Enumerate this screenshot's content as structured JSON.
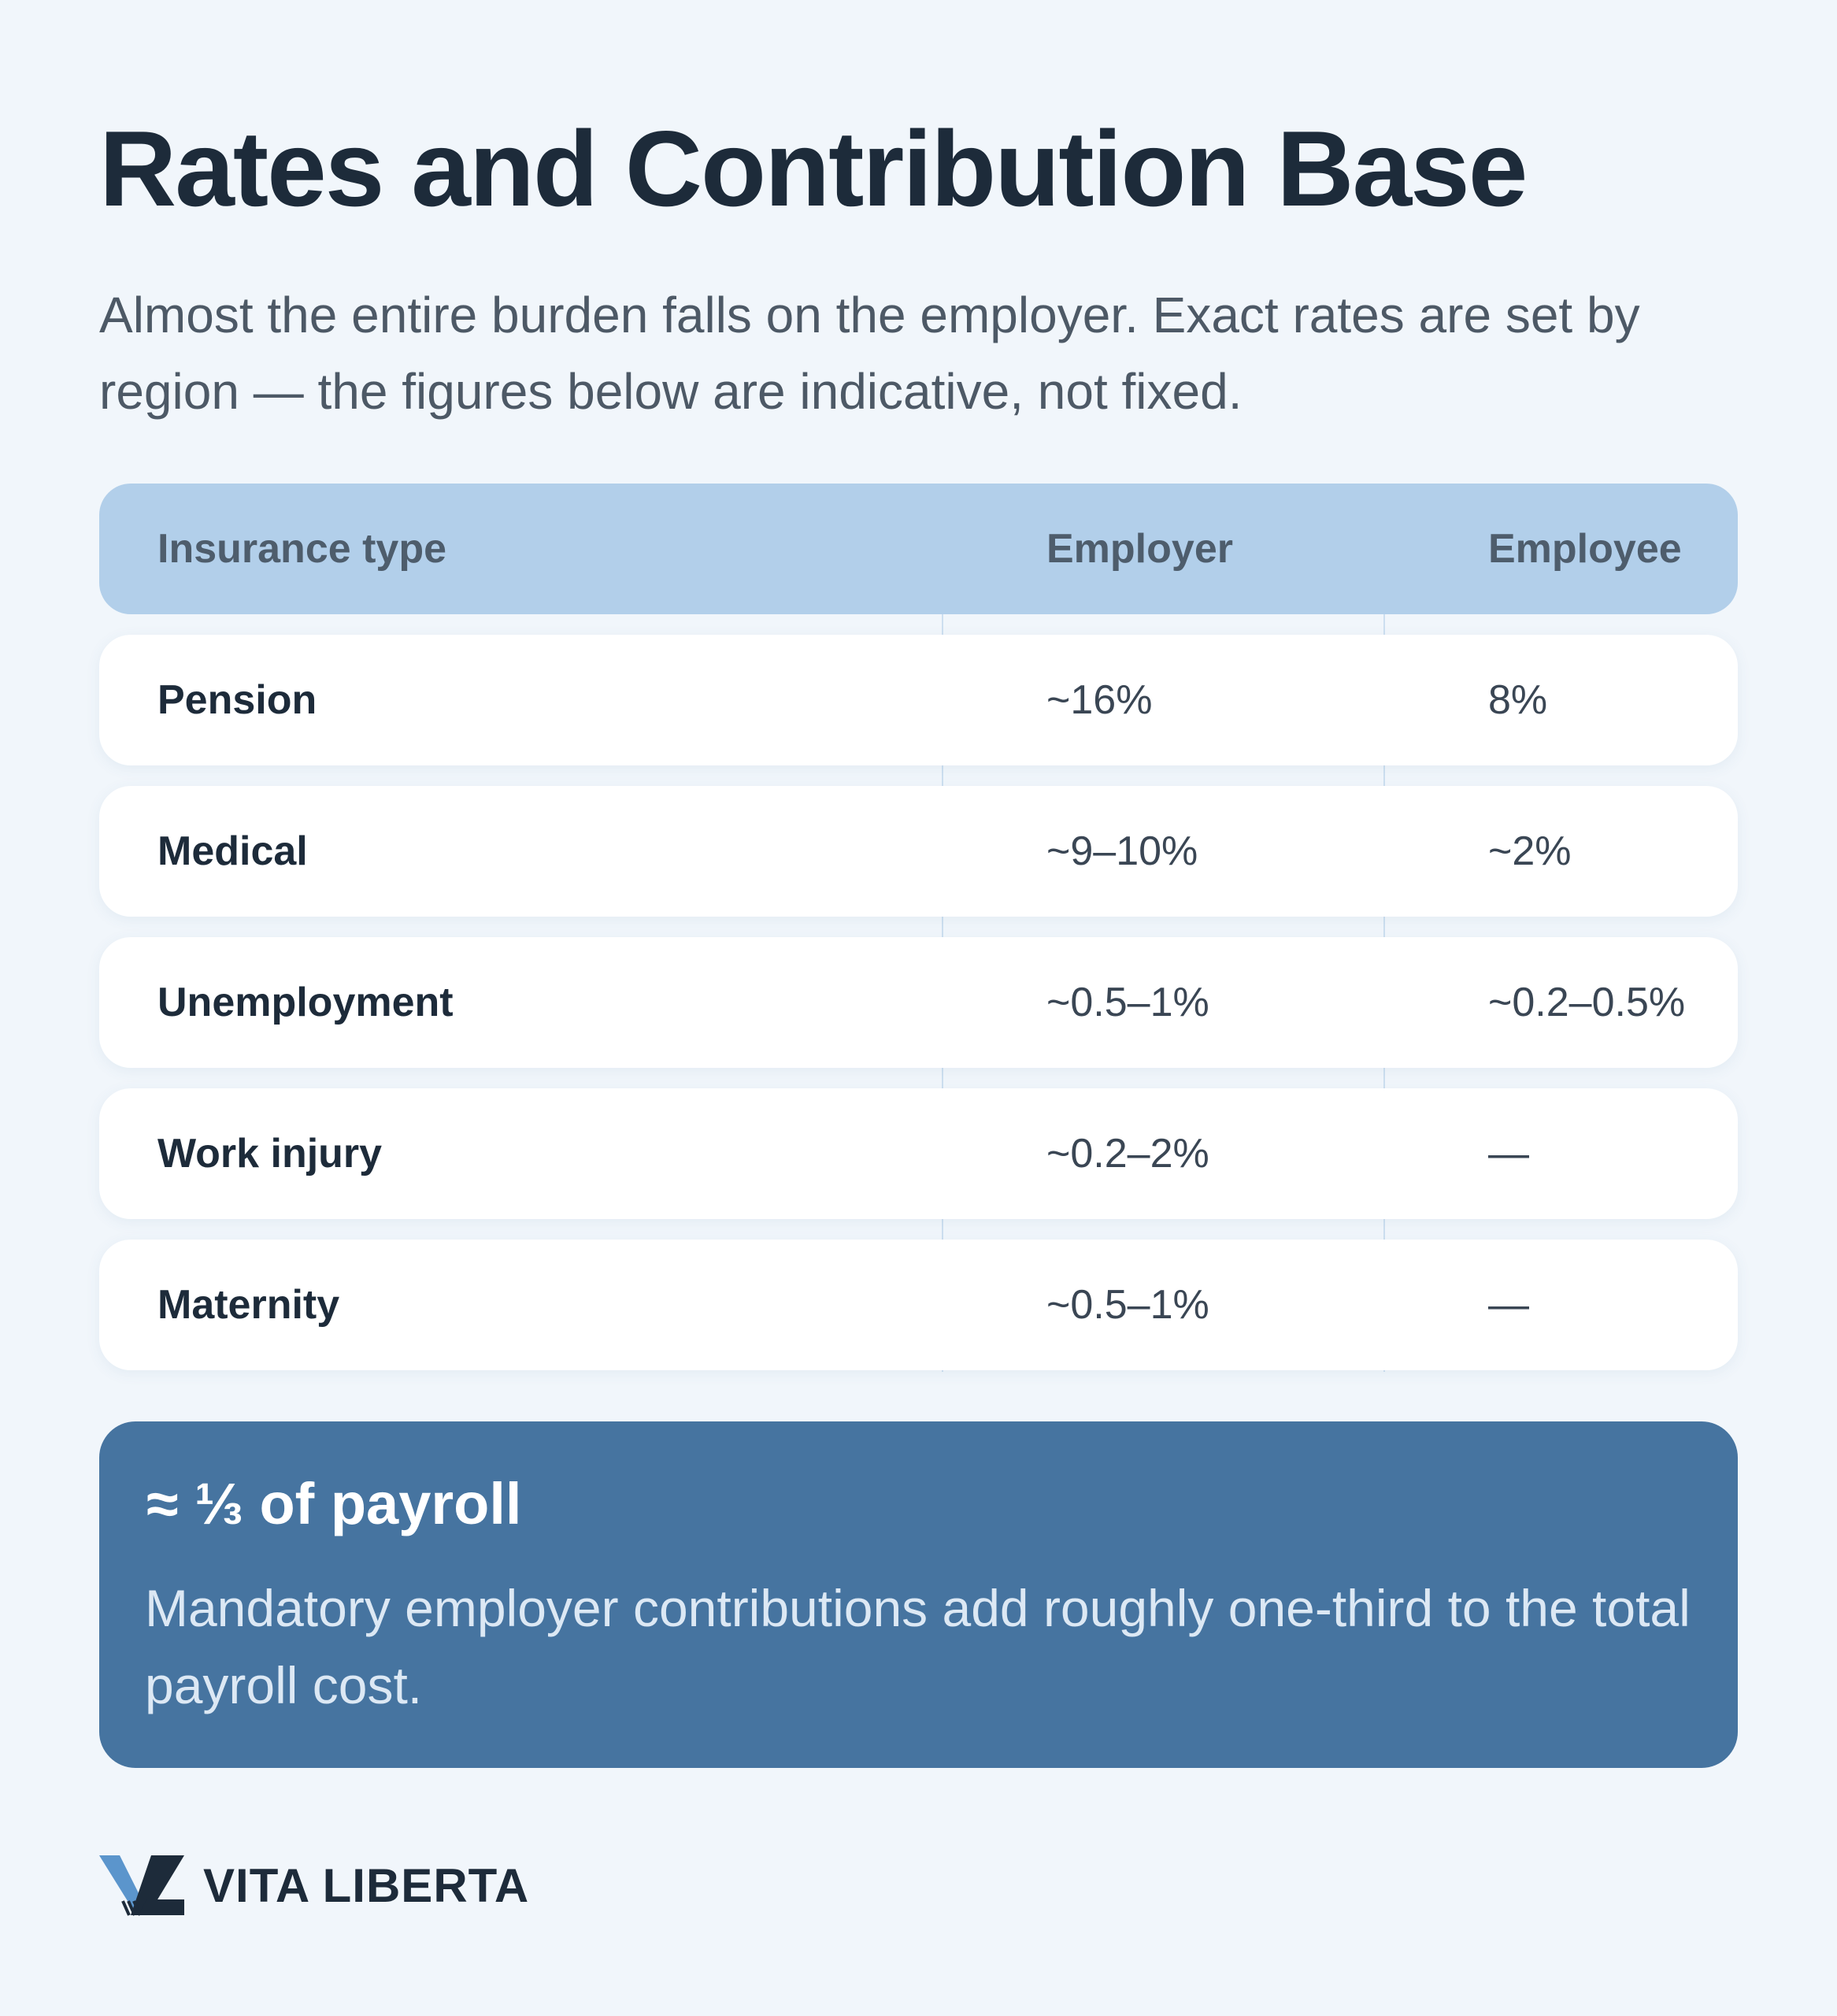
{
  "title": "Rates and Contribution Base",
  "subtitle": "Almost the entire burden falls on the employer. Exact rates are set by region — the figures below are indicative, not fixed.",
  "table": {
    "headers": [
      "Insurance type",
      "Employer",
      "Employee"
    ],
    "rows": [
      [
        "Pension",
        "~16%",
        "8%"
      ],
      [
        "Medical",
        "~9–10%",
        "~2%"
      ],
      [
        "Unemployment",
        "~0.5–1%",
        "~0.2–0.5%"
      ],
      [
        "Work injury",
        "~0.2–2%",
        "—"
      ],
      [
        "Maternity",
        "~0.5–1%",
        "—"
      ]
    ]
  },
  "callout": {
    "title": "≈ ⅓ of payroll",
    "text": "Mandatory employer contributions add roughly one-third to the total payroll cost."
  },
  "brand": {
    "name": "VITA LIBERTA",
    "logo_icon": "vita-liberta-logo-icon"
  },
  "colors": {
    "background": "#f1f6fb",
    "title": "#1d2b3a",
    "header_row": "#b2cfea",
    "callout": "#4674a0",
    "logo_blue": "#5b95cc"
  }
}
